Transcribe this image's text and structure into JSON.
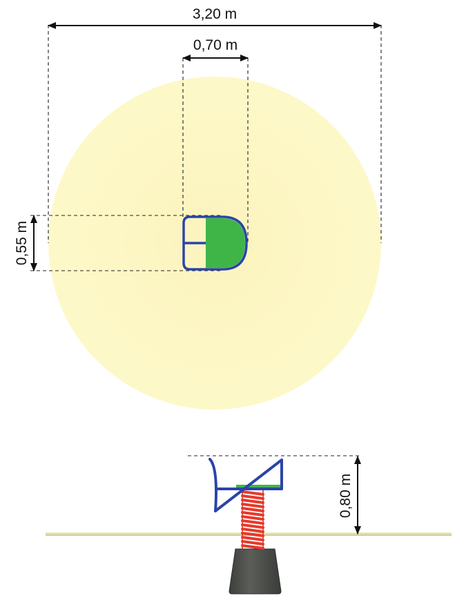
{
  "dimensions": {
    "total_width": "3,20 m",
    "seat_width": "0,70 m",
    "seat_depth": "0,55 m",
    "height": "0,80 m"
  },
  "colors": {
    "safety_zone": "#fdf8c4",
    "frame": "#2a44a8",
    "seat": "#3fb548",
    "spring": "#e8392b",
    "base": "#4f524e",
    "ground": "#e3e3b0",
    "dimension_line": "#111111"
  }
}
